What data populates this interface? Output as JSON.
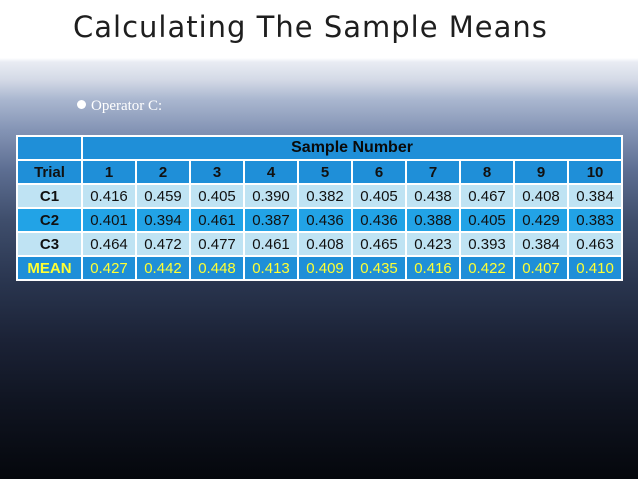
{
  "slide": {
    "title": "Calculating The Sample Means",
    "bullet": "Operator C:"
  },
  "table": {
    "group_header": "Sample Number",
    "columns": [
      "Trial",
      "1",
      "2",
      "3",
      "4",
      "5",
      "6",
      "7",
      "8",
      "9",
      "10"
    ],
    "rows": [
      {
        "trial": "C1",
        "values": [
          "0.416",
          "0.459",
          "0.405",
          "0.390",
          "0.382",
          "0.405",
          "0.438",
          "0.467",
          "0.408",
          "0.384"
        ]
      },
      {
        "trial": "C2",
        "values": [
          "0.401",
          "0.394",
          "0.461",
          "0.387",
          "0.436",
          "0.436",
          "0.388",
          "0.405",
          "0.429",
          "0.383"
        ]
      },
      {
        "trial": "C3",
        "values": [
          "0.464",
          "0.472",
          "0.477",
          "0.461",
          "0.408",
          "0.465",
          "0.423",
          "0.393",
          "0.384",
          "0.463"
        ]
      },
      {
        "trial": "MEAN",
        "values": [
          "0.427",
          "0.442",
          "0.448",
          "0.413",
          "0.409",
          "0.435",
          "0.416",
          "0.422",
          "0.407",
          "0.410"
        ]
      }
    ],
    "colors": {
      "header": "#1f8fd8",
      "row_light": "#bfe3f3",
      "row_dark": "#22a3e6",
      "mean_text": "#ffff33"
    }
  }
}
